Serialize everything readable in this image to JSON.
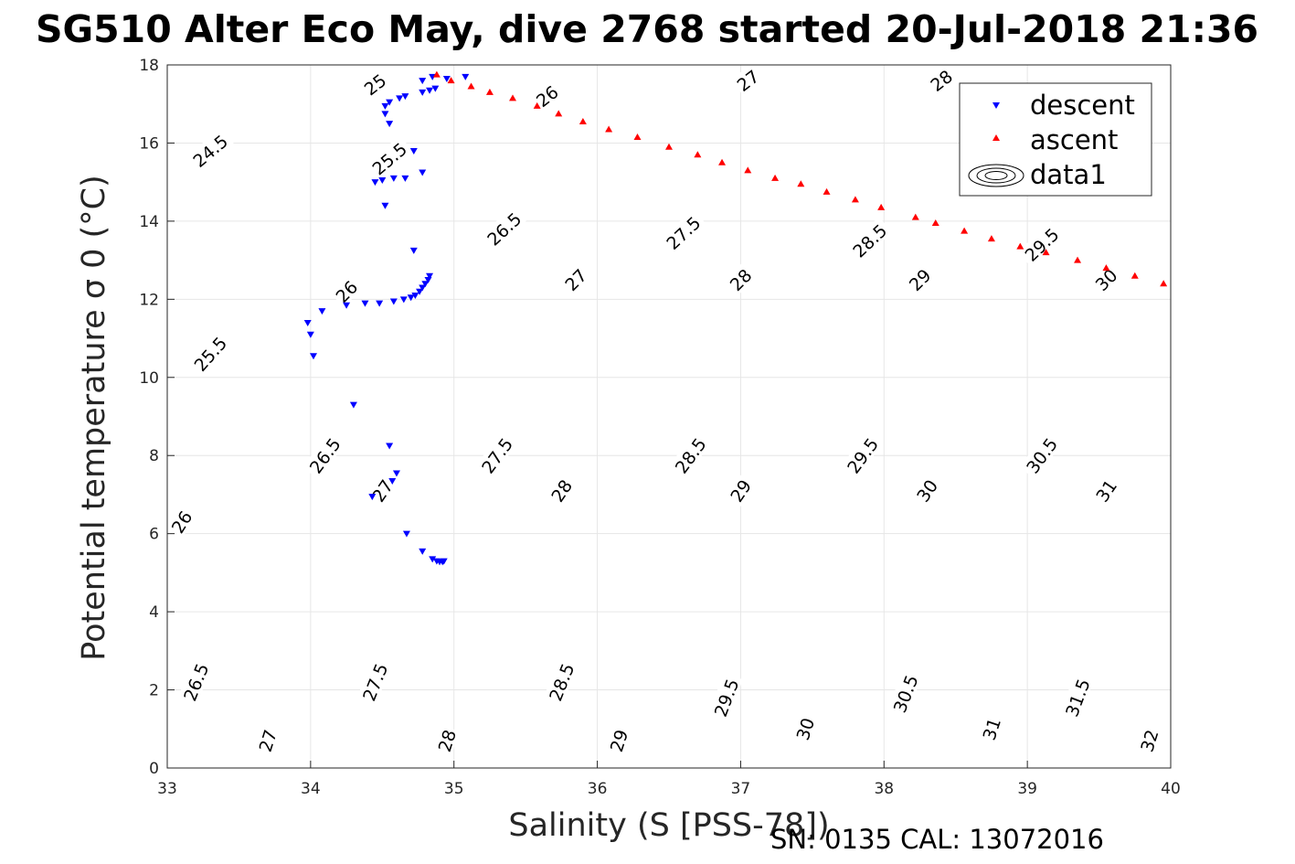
{
  "chart_data": {
    "type": "scatter",
    "title": "SG510 Alter Eco May, dive 2768 started 20-Jul-2018 21:36",
    "xlabel": "Salinity (S [PSS-78])",
    "ylabel": "Potential temperature σ 0 (°C)",
    "xlim": [
      33,
      40
    ],
    "ylim": [
      0,
      18
    ],
    "xticks": [
      "33",
      "34",
      "35",
      "36",
      "37",
      "38",
      "39",
      "40"
    ],
    "yticks": [
      "0",
      "2",
      "4",
      "6",
      "8",
      "10",
      "12",
      "14",
      "16",
      "18"
    ],
    "grid": true,
    "legend_position": "top-right",
    "legend": [
      "descent",
      "ascent",
      "data1"
    ],
    "footer": "SN: 0135  CAL: 13072016",
    "colors": {
      "descent": "#0000ff",
      "ascent": "#ff0000",
      "contour": "#000000",
      "grid": "#e6e6e6"
    },
    "contour_levels": [
      "24.5",
      "25",
      "25.5",
      "26",
      "26.5",
      "27",
      "27.5",
      "28",
      "28.5",
      "29",
      "29.5",
      "30",
      "30.5",
      "31",
      "31.5",
      "32"
    ],
    "contour_labels": [
      {
        "text": "24.5",
        "x": 33.3,
        "y": 15.8
      },
      {
        "text": "25",
        "x": 34.45,
        "y": 17.5
      },
      {
        "text": "25.5",
        "x": 34.55,
        "y": 15.6
      },
      {
        "text": "26",
        "x": 35.65,
        "y": 17.2
      },
      {
        "text": "26",
        "x": 34.25,
        "y": 12.2
      },
      {
        "text": "27",
        "x": 37.05,
        "y": 17.6
      },
      {
        "text": "28",
        "x": 38.4,
        "y": 17.6
      },
      {
        "text": "25.5",
        "x": 33.3,
        "y": 10.6
      },
      {
        "text": "26.5",
        "x": 35.35,
        "y": 13.8
      },
      {
        "text": "27.5",
        "x": 36.6,
        "y": 13.7
      },
      {
        "text": "28.5",
        "x": 37.9,
        "y": 13.5
      },
      {
        "text": "29.5",
        "x": 39.1,
        "y": 13.4
      },
      {
        "text": "27",
        "x": 35.85,
        "y": 12.5
      },
      {
        "text": "28",
        "x": 37.0,
        "y": 12.5
      },
      {
        "text": "29",
        "x": 38.25,
        "y": 12.5
      },
      {
        "text": "30",
        "x": 39.55,
        "y": 12.5
      },
      {
        "text": "26",
        "x": 33.1,
        "y": 6.3
      },
      {
        "text": "26.5",
        "x": 34.1,
        "y": 8.0
      },
      {
        "text": "27",
        "x": 34.5,
        "y": 7.1
      },
      {
        "text": "27.5",
        "x": 35.3,
        "y": 8.0
      },
      {
        "text": "28",
        "x": 35.75,
        "y": 7.1
      },
      {
        "text": "28.5",
        "x": 36.65,
        "y": 8.0
      },
      {
        "text": "29",
        "x": 37.0,
        "y": 7.1
      },
      {
        "text": "29.5",
        "x": 37.85,
        "y": 8.0
      },
      {
        "text": "30",
        "x": 38.3,
        "y": 7.1
      },
      {
        "text": "30.5",
        "x": 39.1,
        "y": 8.0
      },
      {
        "text": "31",
        "x": 39.55,
        "y": 7.1
      },
      {
        "text": "26.5",
        "x": 33.2,
        "y": 2.2
      },
      {
        "text": "27",
        "x": 33.7,
        "y": 0.7
      },
      {
        "text": "27.5",
        "x": 34.45,
        "y": 2.2
      },
      {
        "text": "28",
        "x": 34.95,
        "y": 0.7
      },
      {
        "text": "28.5",
        "x": 35.75,
        "y": 2.2
      },
      {
        "text": "29",
        "x": 36.15,
        "y": 0.7
      },
      {
        "text": "29.5",
        "x": 36.9,
        "y": 1.8
      },
      {
        "text": "30",
        "x": 37.45,
        "y": 1.0
      },
      {
        "text": "30.5",
        "x": 38.15,
        "y": 1.9
      },
      {
        "text": "31",
        "x": 38.75,
        "y": 1.0
      },
      {
        "text": "31.5",
        "x": 39.35,
        "y": 1.8
      },
      {
        "text": "32",
        "x": 39.85,
        "y": 0.7
      }
    ],
    "series": [
      {
        "name": "descent",
        "marker": "triangle-down",
        "points": [
          [
            34.85,
            17.7
          ],
          [
            35.08,
            17.7
          ],
          [
            34.95,
            17.65
          ],
          [
            34.78,
            17.6
          ],
          [
            34.87,
            17.4
          ],
          [
            34.83,
            17.35
          ],
          [
            34.78,
            17.3
          ],
          [
            34.66,
            17.2
          ],
          [
            34.62,
            17.15
          ],
          [
            34.55,
            17.05
          ],
          [
            34.52,
            16.95
          ],
          [
            34.52,
            16.75
          ],
          [
            34.55,
            16.5
          ],
          [
            34.72,
            15.8
          ],
          [
            34.78,
            15.25
          ],
          [
            34.66,
            15.1
          ],
          [
            34.58,
            15.1
          ],
          [
            34.5,
            15.05
          ],
          [
            34.45,
            15.0
          ],
          [
            34.52,
            14.4
          ],
          [
            34.72,
            13.25
          ],
          [
            34.83,
            12.6
          ],
          [
            34.82,
            12.5
          ],
          [
            34.8,
            12.4
          ],
          [
            34.78,
            12.3
          ],
          [
            34.76,
            12.2
          ],
          [
            34.73,
            12.1
          ],
          [
            34.7,
            12.05
          ],
          [
            34.65,
            12.0
          ],
          [
            34.58,
            11.95
          ],
          [
            34.48,
            11.9
          ],
          [
            34.38,
            11.9
          ],
          [
            34.25,
            11.85
          ],
          [
            34.08,
            11.7
          ],
          [
            33.98,
            11.4
          ],
          [
            34.0,
            11.1
          ],
          [
            34.02,
            10.55
          ],
          [
            34.3,
            9.3
          ],
          [
            34.55,
            8.25
          ],
          [
            34.6,
            7.55
          ],
          [
            34.57,
            7.35
          ],
          [
            34.43,
            6.95
          ],
          [
            34.67,
            6.0
          ],
          [
            34.78,
            5.55
          ],
          [
            34.85,
            5.35
          ],
          [
            34.88,
            5.3
          ],
          [
            34.9,
            5.28
          ],
          [
            34.92,
            5.28
          ],
          [
            34.93,
            5.3
          ]
        ]
      },
      {
        "name": "ascent",
        "marker": "triangle-up",
        "points": [
          [
            34.88,
            17.75
          ],
          [
            34.98,
            17.6
          ],
          [
            35.12,
            17.45
          ],
          [
            35.25,
            17.3
          ],
          [
            35.41,
            17.15
          ],
          [
            35.58,
            16.95
          ],
          [
            35.73,
            16.75
          ],
          [
            35.9,
            16.55
          ],
          [
            36.08,
            16.35
          ],
          [
            36.28,
            16.15
          ],
          [
            36.5,
            15.9
          ],
          [
            36.7,
            15.7
          ],
          [
            36.87,
            15.5
          ],
          [
            37.05,
            15.3
          ],
          [
            37.24,
            15.1
          ],
          [
            37.42,
            14.95
          ],
          [
            37.6,
            14.75
          ],
          [
            37.8,
            14.55
          ],
          [
            37.98,
            14.35
          ],
          [
            38.22,
            14.1
          ],
          [
            38.36,
            13.95
          ],
          [
            38.56,
            13.75
          ],
          [
            38.75,
            13.55
          ],
          [
            38.95,
            13.35
          ],
          [
            39.13,
            13.2
          ],
          [
            39.35,
            13.0
          ],
          [
            39.55,
            12.8
          ],
          [
            39.75,
            12.6
          ],
          [
            39.95,
            12.4
          ]
        ]
      }
    ]
  }
}
